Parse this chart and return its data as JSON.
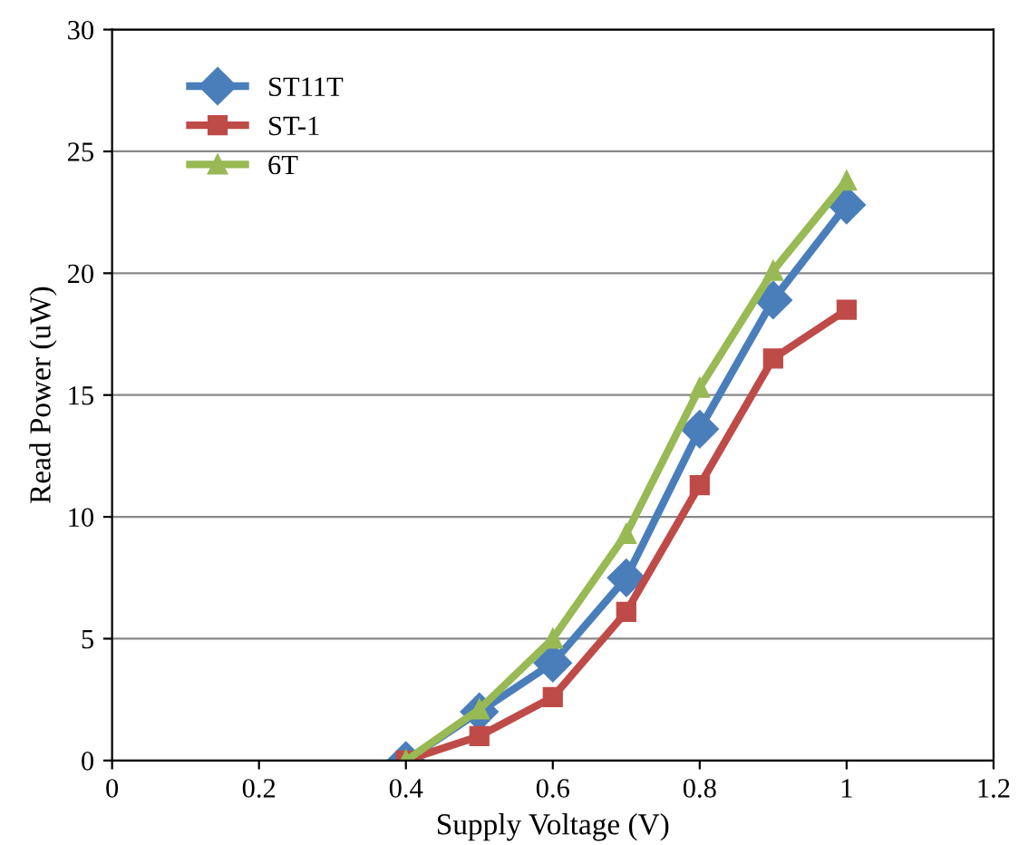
{
  "chart_data": {
    "type": "line",
    "xlabel": "Supply Voltage (V)",
    "ylabel": "Read Power (uW)",
    "x": [
      0.4,
      0.5,
      0.6,
      0.7,
      0.8,
      0.9,
      1.0
    ],
    "series": [
      {
        "name": "ST11T",
        "color": "#4a7ebb",
        "marker": "diamond",
        "values": [
          0,
          2.0,
          4.0,
          7.5,
          13.6,
          18.9,
          22.8
        ]
      },
      {
        "name": "ST-1",
        "color": "#be4b48",
        "marker": "square",
        "values": [
          0,
          1.0,
          2.6,
          6.1,
          11.3,
          16.5,
          18.5
        ]
      },
      {
        "name": "6T",
        "color": "#98b954",
        "marker": "triangle",
        "values": [
          0,
          2.1,
          5.0,
          9.3,
          15.3,
          20.1,
          23.8
        ]
      }
    ],
    "xlim": [
      0,
      1.2
    ],
    "xticks": [
      0,
      0.2,
      0.4,
      0.6,
      0.8,
      1,
      1.2
    ],
    "ylim": [
      0,
      30
    ],
    "yticks": [
      0,
      5,
      10,
      15,
      20,
      25,
      30
    ],
    "grid": "y",
    "legend": "top left",
    "line_style": "solid"
  }
}
